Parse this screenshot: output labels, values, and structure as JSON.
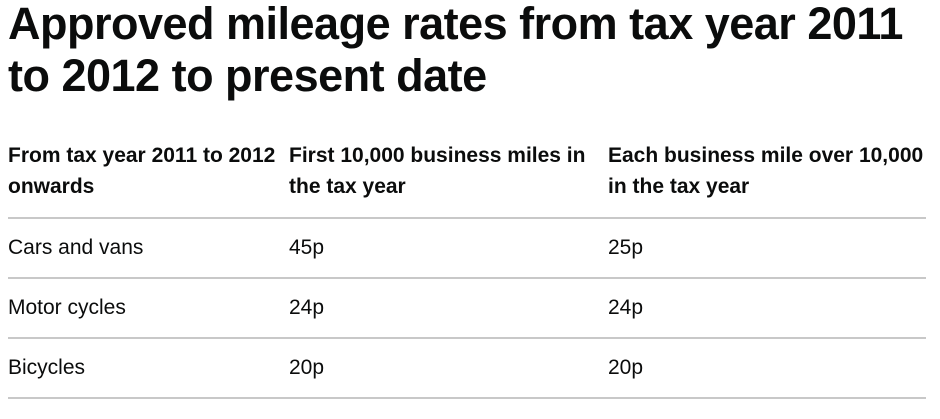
{
  "page": {
    "title": "Approved mileage rates from tax year 2011 to 2012 to present date"
  },
  "table": {
    "headers": [
      "From tax year 2011 to 2012 onwards",
      "First 10,000 business miles in the tax year",
      "Each business mile over 10,000 in the tax year"
    ],
    "rows": [
      [
        "Cars and vans",
        "45p",
        "25p"
      ],
      [
        "Motor cycles",
        "24p",
        "24p"
      ],
      [
        "Bicycles",
        "20p",
        "20p"
      ]
    ]
  }
}
